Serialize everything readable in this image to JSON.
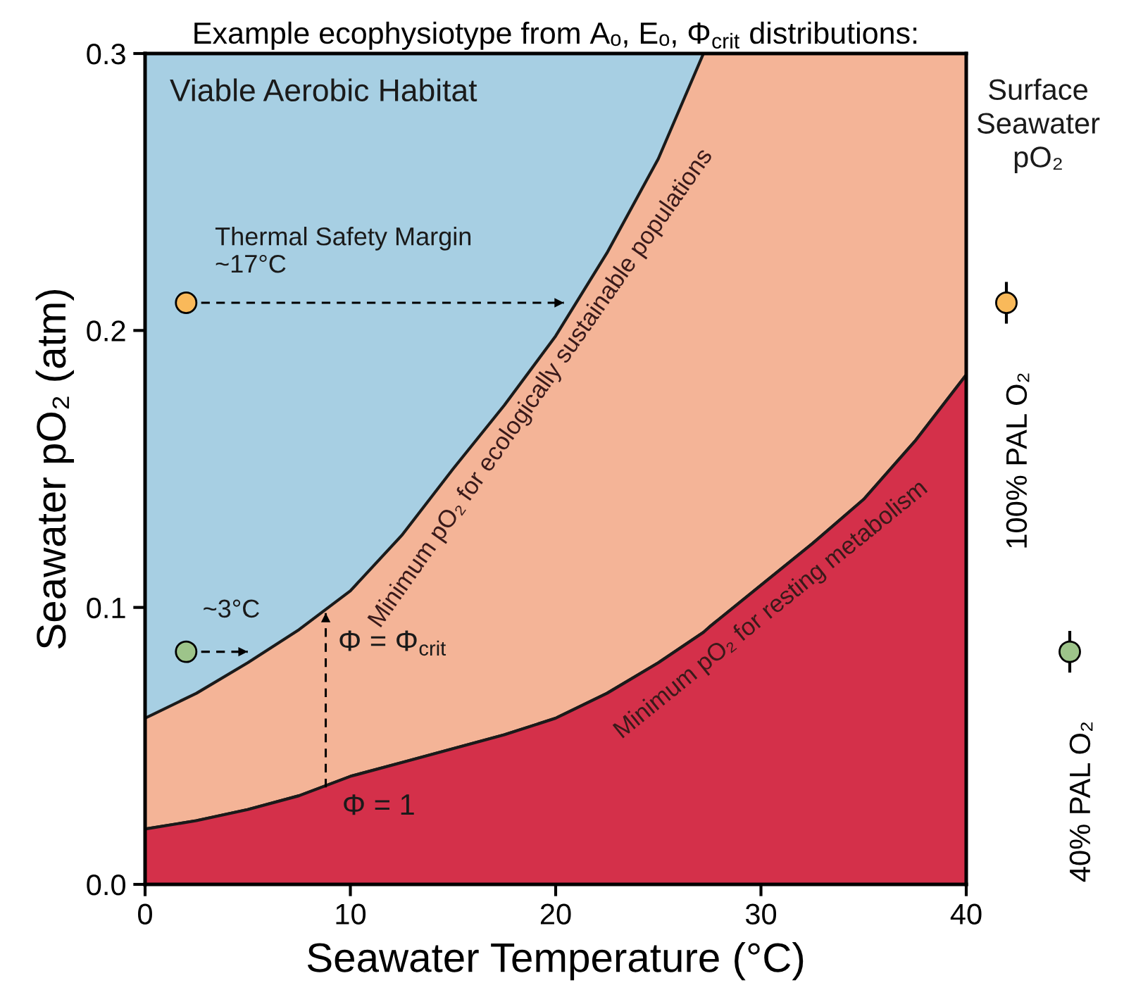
{
  "chart_data": [
    {
      "type": "area",
      "stacked": true,
      "title": "Example ecophysiotype from Aₒ, Eₒ, Φ$_{crit}$ distributions:",
      "xlabel": "Seawater Temperature (°C)",
      "ylabel": "Seawater pO₂ (atm)",
      "xlim": [
        0,
        40
      ],
      "ylim": [
        0,
        0.3
      ],
      "xticks": [
        0,
        10,
        20,
        30,
        40
      ],
      "yticks": [
        {
          "value": 0,
          "label": "0.0"
        },
        0.1,
        0.2,
        0.3
      ],
      "grid": false,
      "legend": false,
      "x": [
        0,
        2.5,
        5,
        7.5,
        10,
        12.5,
        15,
        17.5,
        20,
        22.5,
        25,
        27.2,
        27.5,
        30,
        32.5,
        35,
        37.5,
        40
      ],
      "series": [
        {
          "color": "#d4304a",
          "values": [
            0.02,
            0.023,
            0.027,
            0.032,
            0.039,
            0.044,
            0.049,
            0.054,
            0.06,
            0.069,
            0.08,
            0.091,
            0.093,
            0.108,
            0.123,
            0.139,
            0.16,
            0.184
          ]
        },
        {
          "color": "#f4b497",
          "values": [
            0.04,
            0.046,
            0.053,
            0.06,
            0.067,
            0.082,
            0.101,
            0.119,
            0.138,
            0.159,
            0.182,
            0.209,
            0.207,
            0.192,
            0.177,
            0.161,
            0.14,
            0.116
          ]
        },
        {
          "color": "#a7cfe3",
          "values": [
            0.24,
            0.231,
            0.22,
            0.208,
            0.194,
            0.174,
            0.15,
            0.127,
            0.102,
            0.072,
            0.038,
            0,
            0,
            0,
            0,
            0,
            0,
            0
          ]
        },
        {
          "type": "line",
          "color": "#000000",
          "line_style": "dashed",
          "x": [
            2,
            20.4
          ],
          "values": [
            0.21,
            0.21
          ]
        },
        {
          "type": "line",
          "color": "#000000",
          "line_style": "dashed",
          "x": [
            2,
            5
          ],
          "values": [
            0.084,
            0.084
          ]
        },
        {
          "type": "line",
          "color": "#000000",
          "line_style": "dashed",
          "x": [
            8.8,
            8.8
          ],
          "values": [
            0.035,
            0.098
          ]
        },
        {
          "type": "scatter",
          "color": "#f9b95a",
          "x": [
            2
          ],
          "values": [
            0.21
          ]
        },
        {
          "type": "scatter",
          "color": "#9dc48a",
          "x": [
            2
          ],
          "values": [
            0.084
          ]
        }
      ],
      "annotations": [
        "Viable Aerobic Habitat",
        "Thermal Safety Margin\n~17°C",
        "~3°C",
        "Φ = Φ$_{crit}$",
        "Φ = 1",
        "Minimum pO₂ for ecologically sustainable populations",
        "Minimum pO₂ for resting metabolism",
        "Surface\nSeawater\npO₂",
        "100% PAL O₂",
        "40% PAL O₂"
      ]
    }
  ]
}
